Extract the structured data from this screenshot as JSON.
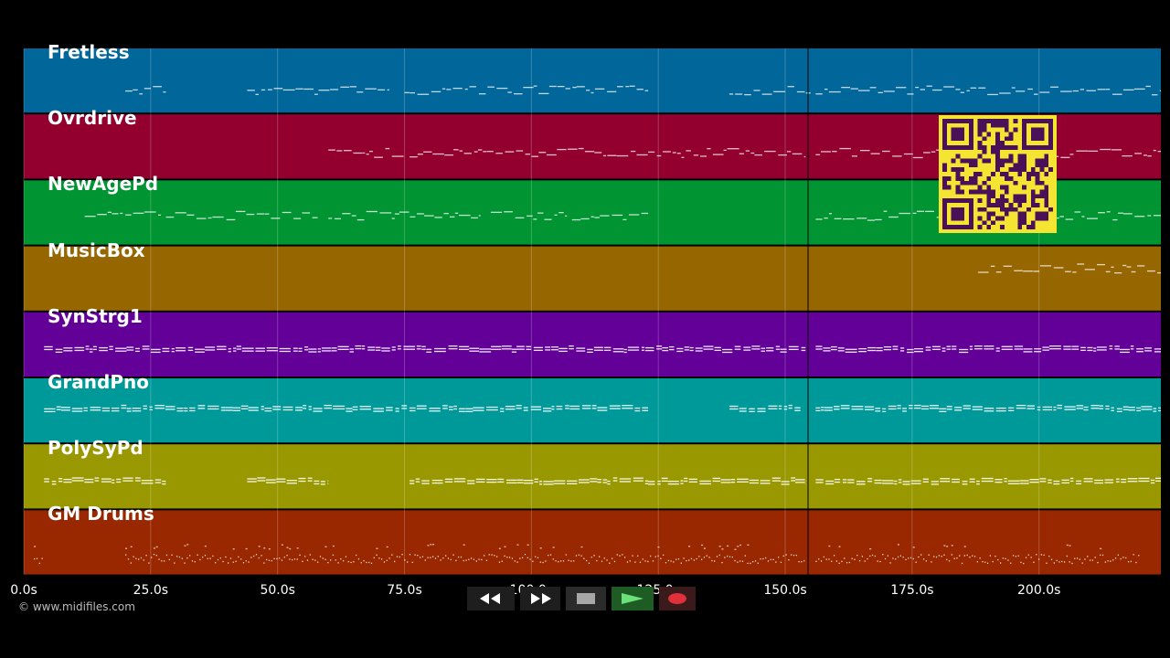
{
  "app": {
    "copyright": "© www.midifiles.com",
    "qr_icon": "qr-code-icon"
  },
  "tracks": [
    {
      "name": "Fretless",
      "color": "#016699",
      "segments": [
        [
          20,
          28
        ],
        [
          44,
          72
        ],
        [
          75,
          123
        ],
        [
          139,
          155
        ],
        [
          156,
          224
        ]
      ],
      "density": "sparse",
      "y": 0.6
    },
    {
      "name": "Ovrdrive",
      "color": "#93002f",
      "segments": [
        [
          60,
          75
        ],
        [
          76,
          123
        ],
        [
          123,
          154
        ],
        [
          156,
          224
        ]
      ],
      "density": "sparse",
      "y": 0.55
    },
    {
      "name": "NewAgePd",
      "color": "#009432",
      "segments": [
        [
          12,
          27
        ],
        [
          28,
          58
        ],
        [
          60,
          74
        ],
        [
          74,
          90
        ],
        [
          92,
          107
        ],
        [
          108,
          123
        ],
        [
          156,
          224
        ]
      ],
      "density": "sparse",
      "y": 0.5
    },
    {
      "name": "MusicBox",
      "color": "#966600",
      "segments": [
        [
          188,
          224
        ]
      ],
      "density": "sparse",
      "y": 0.3
    },
    {
      "name": "SynStrg1",
      "color": "#620098",
      "segments": [
        [
          4,
          154
        ],
        [
          156,
          224
        ]
      ],
      "density": "dense",
      "y": 0.5
    },
    {
      "name": "GrandPno",
      "color": "#009999",
      "segments": [
        [
          4,
          123
        ],
        [
          139,
          153
        ],
        [
          156,
          224
        ]
      ],
      "density": "dense",
      "y": 0.4
    },
    {
      "name": "PolySyPd",
      "color": "#999800",
      "segments": [
        [
          4,
          28
        ],
        [
          44,
          60
        ],
        [
          76,
          123
        ],
        [
          123,
          154
        ],
        [
          156,
          224
        ]
      ],
      "density": "dense",
      "y": 0.5
    },
    {
      "name": "GM Drums",
      "color": "#992700",
      "segments": [
        [
          2,
          4
        ],
        [
          20,
          154
        ],
        [
          156,
          220
        ]
      ],
      "density": "drums",
      "y": 0.7
    }
  ],
  "timeline": {
    "ticks": [
      "0.0s",
      "25.0s",
      "50.0s",
      "75.0s",
      "100.0s",
      "125.0s",
      "150.0s",
      "175.0s",
      "200.0s"
    ],
    "tick_values": [
      0,
      25,
      50,
      75,
      100,
      125,
      150,
      175,
      200
    ],
    "max_value": 224,
    "playhead_value": 154.5
  },
  "controls": [
    {
      "name": "rewind-button",
      "icon": "rewind-icon"
    },
    {
      "name": "fast-forward-button",
      "icon": "fast-forward-icon"
    },
    {
      "name": "stop-button",
      "icon": "stop-icon"
    },
    {
      "name": "play-button",
      "icon": "play-icon"
    },
    {
      "name": "record-button",
      "icon": "record-icon"
    }
  ]
}
